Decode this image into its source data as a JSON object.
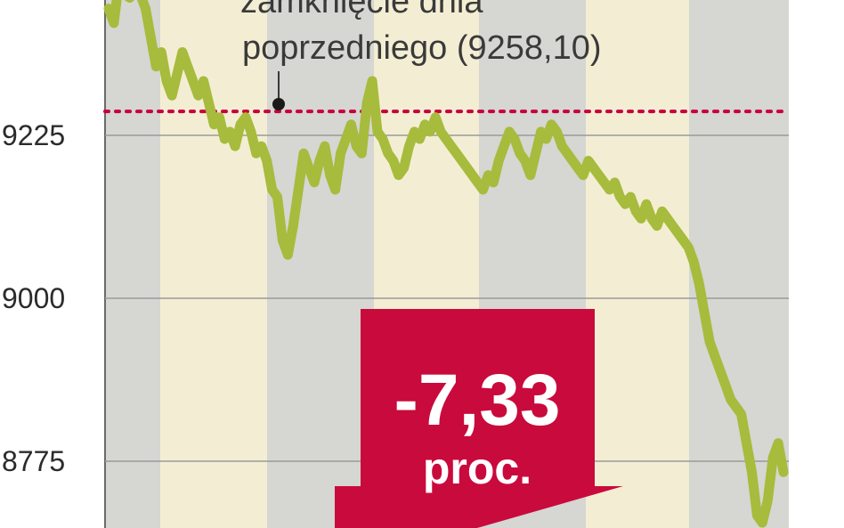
{
  "chart_data": {
    "type": "line",
    "title": "",
    "xlabel": "",
    "ylabel": "",
    "ylim": [
      8700,
      9440
    ],
    "y_ticks": [
      {
        "value": 9225,
        "label": "9225"
      },
      {
        "value": 9000,
        "label": "9000"
      },
      {
        "value": 8775,
        "label": "8775"
      }
    ],
    "grid": true,
    "reference_line": {
      "value": 9258.1,
      "label_line1": "zamknięcie dnia",
      "label_line2": "poprzedniego (9258,10)"
    },
    "badge": {
      "value": "-7,33",
      "unit": "proc."
    },
    "series": [
      {
        "values": [
          9400,
          9380,
          9440,
          9420,
          9415,
          9432,
          9420,
          9400,
          9360,
          9320,
          9340,
          9300,
          9280,
          9310,
          9340,
          9320,
          9300,
          9280,
          9300,
          9270,
          9240,
          9250,
          9220,
          9230,
          9210,
          9240,
          9250,
          9230,
          9200,
          9210,
          9190,
          9150,
          9140,
          9080,
          9060,
          9100,
          9150,
          9200,
          9180,
          9160,
          9190,
          9210,
          9170,
          9150,
          9200,
          9220,
          9240,
          9210,
          9200,
          9270,
          9300,
          9230,
          9220,
          9200,
          9190,
          9170,
          9180,
          9210,
          9230,
          9220,
          9240,
          9230,
          9250,
          9230,
          9220,
          9210,
          9200,
          9190,
          9180,
          9170,
          9160,
          9150,
          9170,
          9160,
          9190,
          9210,
          9230,
          9220,
          9200,
          9190,
          9170,
          9200,
          9230,
          9220,
          9240,
          9230,
          9210,
          9200,
          9190,
          9180,
          9170,
          9190,
          9180,
          9170,
          9160,
          9150,
          9160,
          9140,
          9130,
          9140,
          9120,
          9110,
          9130,
          9110,
          9100,
          9120,
          9110,
          9100,
          9090,
          9080,
          9070,
          9050,
          9020,
          8980,
          8940,
          8920,
          8900,
          8880,
          8860,
          8850,
          8840,
          8800,
          8760,
          8700,
          8690,
          8720,
          8780,
          8800,
          8760
        ]
      }
    ]
  },
  "colors": {
    "line": "#a7bb3d",
    "band_gray": "#d6d6d2",
    "band_cream": "#f3eed3",
    "reference": "#c8003c",
    "badge": "#c90a3c",
    "grid": "#9a9a9a"
  }
}
